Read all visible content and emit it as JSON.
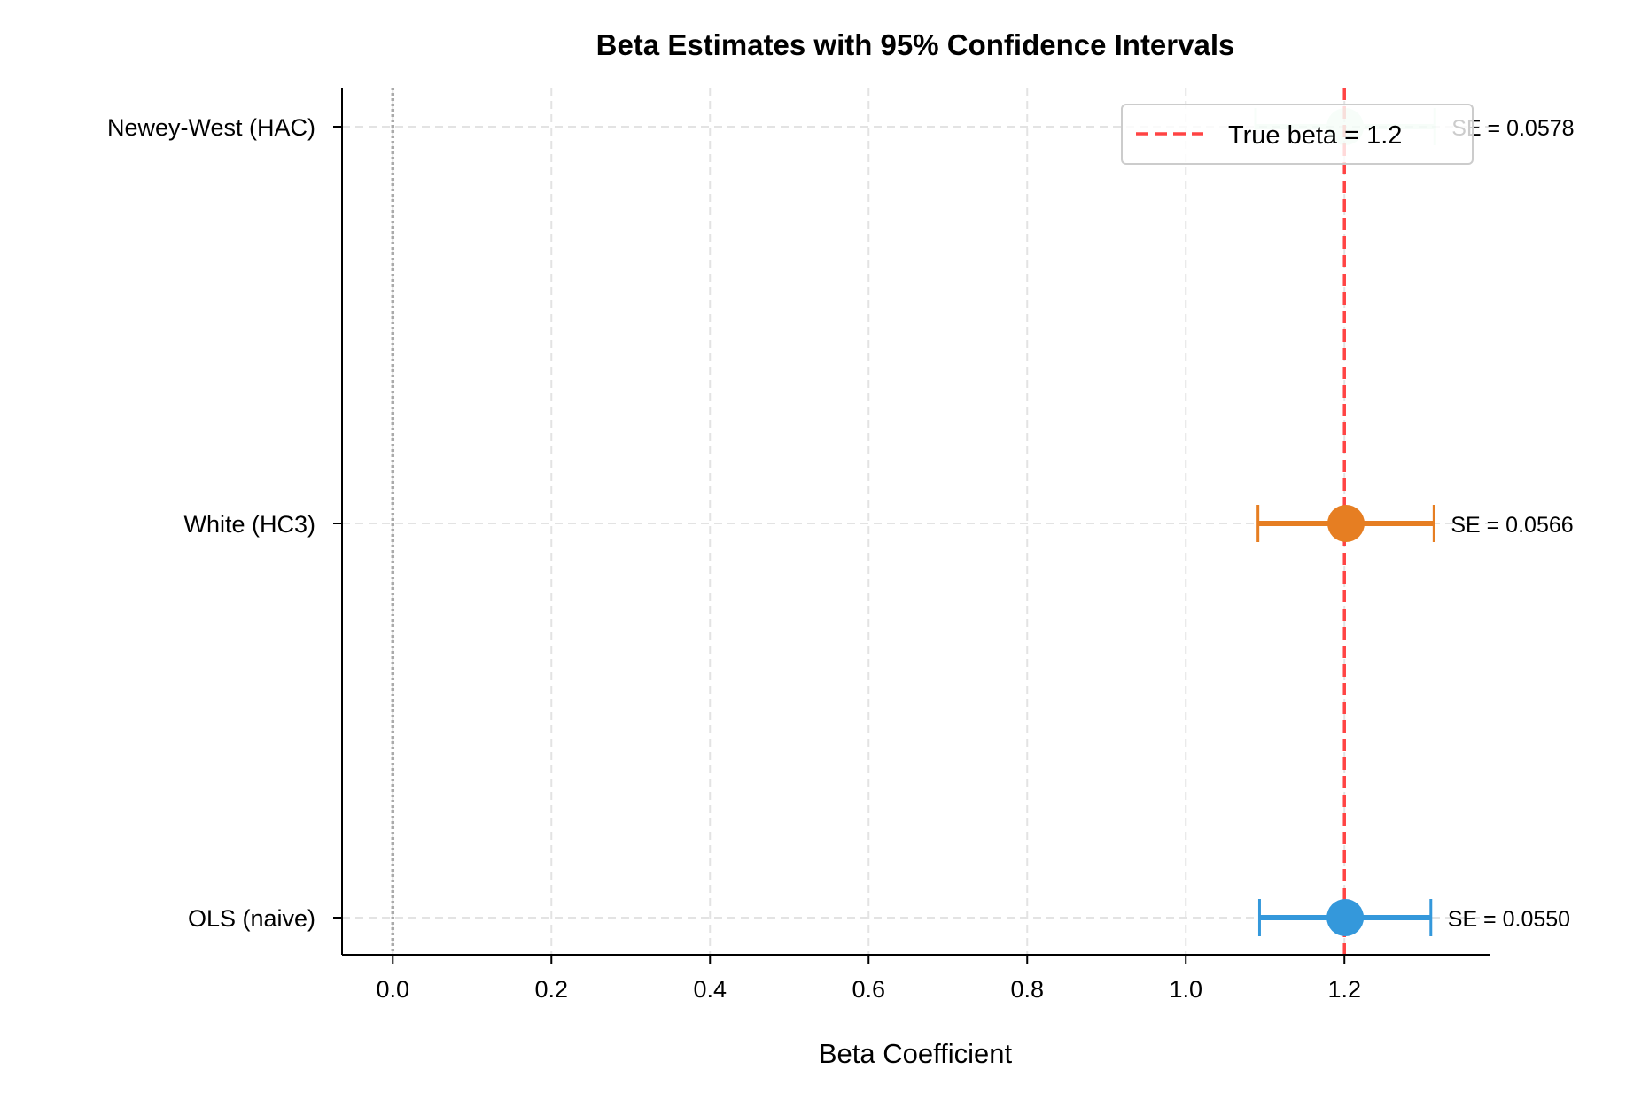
{
  "chart_data": {
    "type": "errorbar",
    "orientation": "horizontal",
    "title": "Beta Estimates with 95% Confidence Intervals",
    "xlabel": "Beta Coefficient",
    "ylabel": "",
    "xlim": [
      -0.064,
      1.383
    ],
    "xticks": [
      "0.0",
      "0.2",
      "0.4",
      "0.6",
      "0.8",
      "1.0",
      "1.2"
    ],
    "xtick_values": [
      0.0,
      0.2,
      0.4,
      0.6,
      0.8,
      1.0,
      1.2
    ],
    "grid": true,
    "categories": [
      "OLS (naive)",
      "White (HC3)",
      "Newey-West (HAC)"
    ],
    "series": [
      {
        "category": "OLS (naive)",
        "estimate": 1.201,
        "ci_low": 1.093,
        "ci_high": 1.309,
        "se": 0.055,
        "label": "SE = 0.0550",
        "color": "#3498db",
        "alpha": 1.0
      },
      {
        "category": "White (HC3)",
        "estimate": 1.202,
        "ci_low": 1.091,
        "ci_high": 1.313,
        "se": 0.0566,
        "label": "SE = 0.0566",
        "color": "#e67e22",
        "alpha": 1.0
      },
      {
        "category": "Newey-West (HAC)",
        "estimate": 1.201,
        "ci_low": 1.088,
        "ci_high": 1.314,
        "se": 0.0578,
        "label": "SE = 0.0578",
        "color": "#2ecc71",
        "alpha": 0.2
      }
    ],
    "reference_lines": [
      {
        "x": 1.2,
        "style": "dashed",
        "color": "#ff4444",
        "label": "True beta = 1.2"
      },
      {
        "x": 0.0,
        "style": "dotted",
        "color": "#aaaaaa"
      }
    ],
    "legend": {
      "position": "top-right",
      "entries": [
        "True beta = 1.2"
      ]
    }
  }
}
